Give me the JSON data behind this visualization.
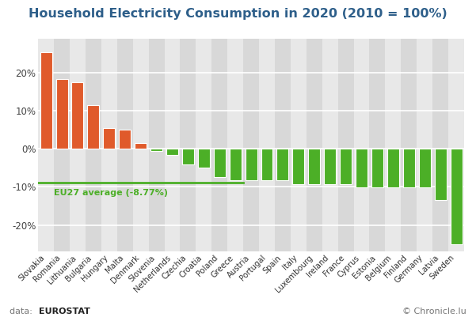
{
  "categories": [
    "Slovakia",
    "Romania",
    "Lithuania",
    "Bulgaria",
    "Hungary",
    "Malta",
    "Denmark",
    "Slovenia",
    "Netherlands",
    "Czechia",
    "Croatia",
    "Poland",
    "Greece",
    "Austria",
    "Portugal",
    "Spain",
    "Italy",
    "Luxembourg",
    "Ireland",
    "France",
    "Cyprus",
    "Estonia",
    "Belgium",
    "Finland",
    "Germany",
    "Latvia",
    "Sweden"
  ],
  "values": [
    25.5,
    18.5,
    17.5,
    11.5,
    5.5,
    5.0,
    1.5,
    -0.5,
    -1.5,
    -4.0,
    -5.0,
    -7.5,
    -8.3,
    -8.3,
    -8.3,
    -8.3,
    -9.2,
    -9.2,
    -9.2,
    -9.2,
    -10.2,
    -10.2,
    -10.2,
    -10.2,
    -10.2,
    -13.5,
    -25.0
  ],
  "positive_color": "#E05A2B",
  "negative_color": "#4CAF27",
  "avg_line_value": -8.77,
  "avg_line_color": "#4CAF27",
  "avg_label": "EU27 average (-8.77%)",
  "title": "Household Electricity Consumption in 2020 (2010 = 100%)",
  "title_color": "#2E5F8A",
  "title_fontsize": 11.5,
  "bg_color": "#FFFFFF",
  "plot_bg_even": "#E8E8E8",
  "plot_bg_odd": "#D8D8D8",
  "grid_color": "#FFFFFF",
  "ytick_labels": [
    "-20%",
    "-10%",
    "0%",
    "10%",
    "20%"
  ],
  "ytick_values": [
    -20,
    -10,
    0,
    10,
    20
  ],
  "ylim": [
    -27,
    29
  ],
  "footer_right": "© Chronicle.lu",
  "bar_width": 0.75
}
